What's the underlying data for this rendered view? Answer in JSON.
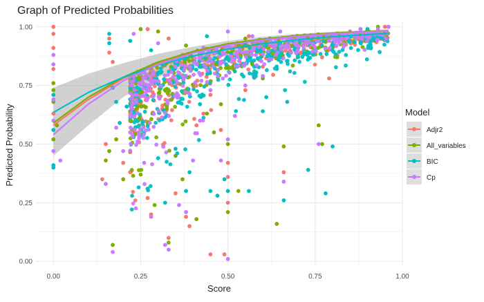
{
  "chart_data": {
    "type": "scatter",
    "title": "Graph of Predicted Probabilities",
    "xlabel": "Score",
    "ylabel": "Predicted Probability",
    "xlim": [
      -0.05,
      1.0
    ],
    "ylim": [
      -0.02,
      1.02
    ],
    "x_ticks": [
      0.0,
      0.25,
      0.5,
      0.75,
      1.0
    ],
    "x_tick_labels": [
      "0.00",
      "0.25",
      "0.50",
      "0.75",
      "1.00"
    ],
    "y_ticks": [
      0.0,
      0.25,
      0.5,
      0.75,
      1.0
    ],
    "y_tick_labels": [
      "0.00",
      "0.25",
      "0.50",
      "0.75",
      "1.00"
    ],
    "grid": true,
    "legend": {
      "title": "Model",
      "position": "right",
      "entries": [
        "Adjr2",
        "All_variables",
        "BIC",
        "Cp"
      ]
    },
    "series": [
      {
        "name": "Adjr2",
        "color": "#F8766D",
        "trend": {
          "x": [
            0.0,
            0.1,
            0.2,
            0.3,
            0.4,
            0.5,
            0.6,
            0.7,
            0.8,
            0.9,
            0.96
          ],
          "y": [
            0.58,
            0.69,
            0.78,
            0.845,
            0.89,
            0.925,
            0.945,
            0.96,
            0.97,
            0.978,
            0.982
          ]
        },
        "points": [
          [
            0.0,
            1.0
          ],
          [
            0.0,
            0.97
          ],
          [
            0.0,
            0.91
          ],
          [
            0.0,
            0.82
          ],
          [
            0.0,
            0.63
          ],
          [
            0.16,
            0.95
          ],
          [
            0.16,
            0.89
          ],
          [
            0.17,
            0.85
          ],
          [
            0.15,
            0.5
          ],
          [
            0.14,
            0.35
          ],
          [
            0.2,
            0.42
          ],
          [
            0.22,
            0.38
          ],
          [
            0.27,
            0.27
          ],
          [
            0.28,
            0.2
          ],
          [
            0.33,
            0.1
          ],
          [
            0.35,
            0.29
          ],
          [
            0.38,
            0.19
          ],
          [
            0.39,
            0.15
          ],
          [
            0.41,
            0.58
          ],
          [
            0.43,
            0.63
          ],
          [
            0.45,
            0.71
          ],
          [
            0.48,
            0.56
          ],
          [
            0.5,
            0.42
          ],
          [
            0.5,
            0.36
          ],
          [
            0.5,
            0.25
          ],
          [
            0.51,
            0.87
          ],
          [
            0.55,
            0.73
          ],
          [
            0.58,
            0.8
          ],
          [
            0.6,
            0.83
          ],
          [
            0.62,
            0.86
          ],
          [
            0.66,
            0.38
          ],
          [
            0.68,
            0.94
          ],
          [
            0.7,
            0.9
          ],
          [
            0.72,
            0.96
          ],
          [
            0.77,
            0.87
          ],
          [
            0.79,
            0.78
          ],
          [
            0.8,
            0.93
          ],
          [
            0.85,
            0.98
          ],
          [
            0.9,
            0.99
          ],
          [
            0.95,
            1.0
          ],
          [
            0.45,
            0.03
          ],
          [
            0.49,
            0.03
          ],
          [
            0.27,
            0.99
          ],
          [
            0.33,
            0.95
          ],
          [
            0.37,
            0.88
          ],
          [
            0.56,
            0.96
          ]
        ]
      },
      {
        "name": "All_variables",
        "color": "#7CAE00",
        "trend": {
          "x": [
            0.0,
            0.1,
            0.2,
            0.3,
            0.4,
            0.5,
            0.6,
            0.7,
            0.8,
            0.9,
            0.96
          ],
          "y": [
            0.59,
            0.7,
            0.785,
            0.85,
            0.895,
            0.928,
            0.948,
            0.963,
            0.973,
            0.98,
            0.984
          ]
        },
        "points": [
          [
            0.0,
            0.76
          ],
          [
            0.0,
            0.73
          ],
          [
            0.0,
            0.68
          ],
          [
            0.0,
            0.52
          ],
          [
            0.01,
            0.58
          ],
          [
            0.15,
            0.43
          ],
          [
            0.16,
            0.47
          ],
          [
            0.17,
            0.07
          ],
          [
            0.18,
            0.52
          ],
          [
            0.2,
            0.35
          ],
          [
            0.22,
            0.47
          ],
          [
            0.25,
            0.37
          ],
          [
            0.27,
            0.31
          ],
          [
            0.29,
            0.24
          ],
          [
            0.33,
            0.08
          ],
          [
            0.35,
            0.45
          ],
          [
            0.37,
            0.35
          ],
          [
            0.41,
            0.18
          ],
          [
            0.44,
            0.63
          ],
          [
            0.46,
            0.55
          ],
          [
            0.48,
            0.67
          ],
          [
            0.5,
            0.5
          ],
          [
            0.5,
            0.21
          ],
          [
            0.53,
            0.3
          ],
          [
            0.57,
            0.84
          ],
          [
            0.6,
            0.78
          ],
          [
            0.62,
            0.89
          ],
          [
            0.64,
            0.16
          ],
          [
            0.66,
            0.49
          ],
          [
            0.7,
            0.87
          ],
          [
            0.73,
            0.93
          ],
          [
            0.76,
            0.58
          ],
          [
            0.77,
            0.5
          ],
          [
            0.8,
            0.91
          ],
          [
            0.84,
            0.97
          ],
          [
            0.88,
            0.99
          ],
          [
            0.93,
            1.0
          ],
          [
            0.25,
            0.99
          ],
          [
            0.3,
            0.98
          ],
          [
            0.38,
            0.92
          ],
          [
            0.45,
            0.86
          ],
          [
            0.55,
            0.95
          ]
        ]
      },
      {
        "name": "BIC",
        "color": "#00BFC4",
        "trend": {
          "x": [
            0.0,
            0.1,
            0.2,
            0.3,
            0.4,
            0.5,
            0.6,
            0.7,
            0.8,
            0.9,
            0.96
          ],
          "y": [
            0.635,
            0.72,
            0.785,
            0.837,
            0.876,
            0.905,
            0.928,
            0.945,
            0.958,
            0.967,
            0.972
          ]
        },
        "points": [
          [
            0.0,
            0.71
          ],
          [
            0.0,
            0.69
          ],
          [
            0.0,
            0.56
          ],
          [
            0.0,
            0.41
          ],
          [
            0.0,
            0.4
          ],
          [
            0.16,
            0.97
          ],
          [
            0.16,
            0.93
          ],
          [
            0.17,
            0.74
          ],
          [
            0.18,
            0.68
          ],
          [
            0.19,
            0.59
          ],
          [
            0.21,
            0.66
          ],
          [
            0.23,
            0.53
          ],
          [
            0.27,
            0.31
          ],
          [
            0.3,
            0.44
          ],
          [
            0.32,
            0.25
          ],
          [
            0.35,
            0.48
          ],
          [
            0.38,
            0.3
          ],
          [
            0.39,
            0.38
          ],
          [
            0.42,
            0.67
          ],
          [
            0.45,
            0.3
          ],
          [
            0.47,
            0.28
          ],
          [
            0.49,
            0.35
          ],
          [
            0.5,
            0.3
          ],
          [
            0.52,
            0.81
          ],
          [
            0.56,
            0.3
          ],
          [
            0.6,
            0.64
          ],
          [
            0.61,
            0.7
          ],
          [
            0.64,
            0.82
          ],
          [
            0.66,
            0.26
          ],
          [
            0.67,
            0.68
          ],
          [
            0.7,
            0.88
          ],
          [
            0.73,
            0.39
          ],
          [
            0.75,
            0.9
          ],
          [
            0.78,
            0.29
          ],
          [
            0.8,
            0.49
          ],
          [
            0.85,
            0.96
          ],
          [
            0.9,
            0.99
          ],
          [
            0.96,
            1.0
          ],
          [
            0.22,
            0.94
          ],
          [
            0.28,
            0.9
          ],
          [
            0.36,
            0.86
          ],
          [
            0.44,
            0.96
          ],
          [
            0.55,
            0.93
          ],
          [
            0.62,
            0.95
          ]
        ]
      },
      {
        "name": "Cp",
        "color": "#C77CFF",
        "trend": {
          "x": [
            0.0,
            0.1,
            0.2,
            0.3,
            0.4,
            0.5,
            0.6,
            0.7,
            0.8,
            0.9,
            0.96
          ],
          "y": [
            0.54,
            0.67,
            0.77,
            0.84,
            0.888,
            0.922,
            0.944,
            0.96,
            0.97,
            0.978,
            0.982
          ]
        },
        "points": [
          [
            0.0,
            0.88
          ],
          [
            0.0,
            0.84
          ],
          [
            0.0,
            0.69
          ],
          [
            0.0,
            0.6
          ],
          [
            0.0,
            0.47
          ],
          [
            0.02,
            0.43
          ],
          [
            0.15,
            0.33
          ],
          [
            0.17,
            0.04
          ],
          [
            0.18,
            0.57
          ],
          [
            0.2,
            0.47
          ],
          [
            0.22,
            0.55
          ],
          [
            0.26,
            0.42
          ],
          [
            0.28,
            0.19
          ],
          [
            0.32,
            0.07
          ],
          [
            0.33,
            0.05
          ],
          [
            0.36,
            0.24
          ],
          [
            0.38,
            0.21
          ],
          [
            0.4,
            0.43
          ],
          [
            0.42,
            0.6
          ],
          [
            0.45,
            0.73
          ],
          [
            0.48,
            0.43
          ],
          [
            0.5,
            0.52
          ],
          [
            0.5,
            0.01
          ],
          [
            0.52,
            0.62
          ],
          [
            0.55,
            0.75
          ],
          [
            0.58,
            0.88
          ],
          [
            0.6,
            0.79
          ],
          [
            0.63,
            0.92
          ],
          [
            0.66,
            0.34
          ],
          [
            0.68,
            0.89
          ],
          [
            0.72,
            0.95
          ],
          [
            0.76,
            0.5
          ],
          [
            0.79,
            0.94
          ],
          [
            0.83,
            0.97
          ],
          [
            0.88,
            0.99
          ],
          [
            0.93,
            0.99
          ],
          [
            0.96,
            1.0
          ],
          [
            0.23,
            0.97
          ],
          [
            0.3,
            0.93
          ],
          [
            0.35,
            0.83
          ],
          [
            0.43,
            0.91
          ],
          [
            0.5,
            0.98
          ],
          [
            0.57,
            0.96
          ],
          [
            0.65,
            0.98
          ]
        ]
      }
    ],
    "confidence_band": {
      "color": "#999999",
      "x": [
        0.0,
        0.1,
        0.2,
        0.3,
        0.4,
        0.5,
        0.6,
        0.7,
        0.8,
        0.9,
        0.96
      ],
      "upper": [
        0.74,
        0.8,
        0.845,
        0.885,
        0.915,
        0.94,
        0.958,
        0.97,
        0.979,
        0.985,
        0.989
      ],
      "lower": [
        0.45,
        0.58,
        0.7,
        0.785,
        0.84,
        0.88,
        0.905,
        0.925,
        0.94,
        0.952,
        0.958
      ]
    },
    "cloud": {
      "x_range": [
        0.22,
        0.96
      ],
      "density_note": "dense overlapping points from all four series concentrated between score 0.22 and 0.6 at probabilities 0.5-1.0"
    }
  }
}
